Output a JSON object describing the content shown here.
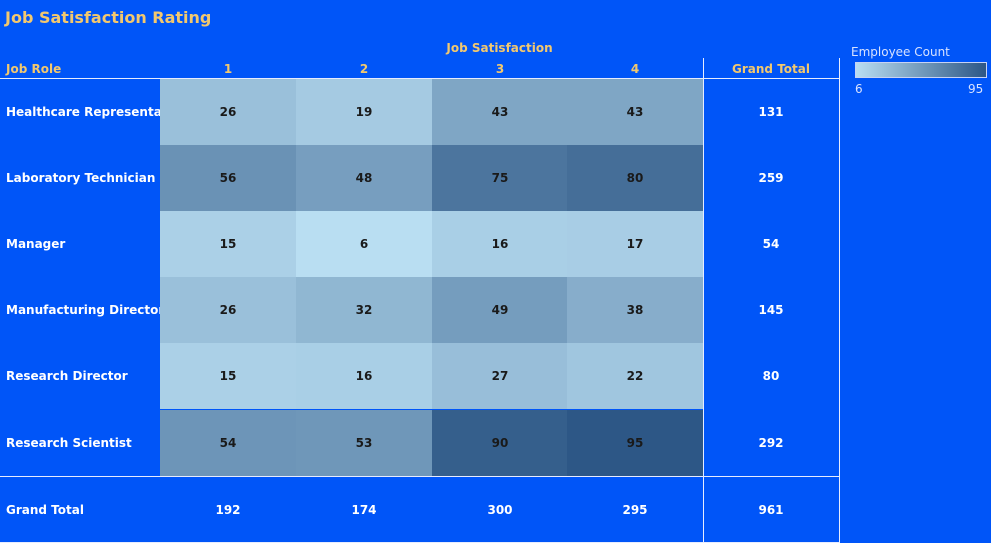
{
  "title": "Job Satisfaction Rating",
  "chart_data": {
    "type": "heatmap",
    "column_header": "Job Satisfaction",
    "row_header": "Job Role",
    "columns": [
      "1",
      "2",
      "3",
      "4"
    ],
    "rows": [
      "Healthcare Representative",
      "Laboratory Technician",
      "Manager",
      "Manufacturing Director",
      "Research Director",
      "Research Scientist"
    ],
    "values": [
      [
        26,
        19,
        43,
        43
      ],
      [
        56,
        48,
        75,
        80
      ],
      [
        15,
        6,
        16,
        17
      ],
      [
        26,
        32,
        49,
        38
      ],
      [
        15,
        16,
        27,
        22
      ],
      [
        54,
        53,
        90,
        95
      ]
    ],
    "row_totals": [
      131,
      259,
      54,
      145,
      80,
      292
    ],
    "grand_total_label": "Grand Total",
    "column_totals": [
      192,
      174,
      300,
      295
    ],
    "grand_total": 961,
    "legend": {
      "title": "Employee Count",
      "min": 6,
      "max": 95,
      "color_low": "#b9def2",
      "color_high": "#2d5786"
    }
  }
}
